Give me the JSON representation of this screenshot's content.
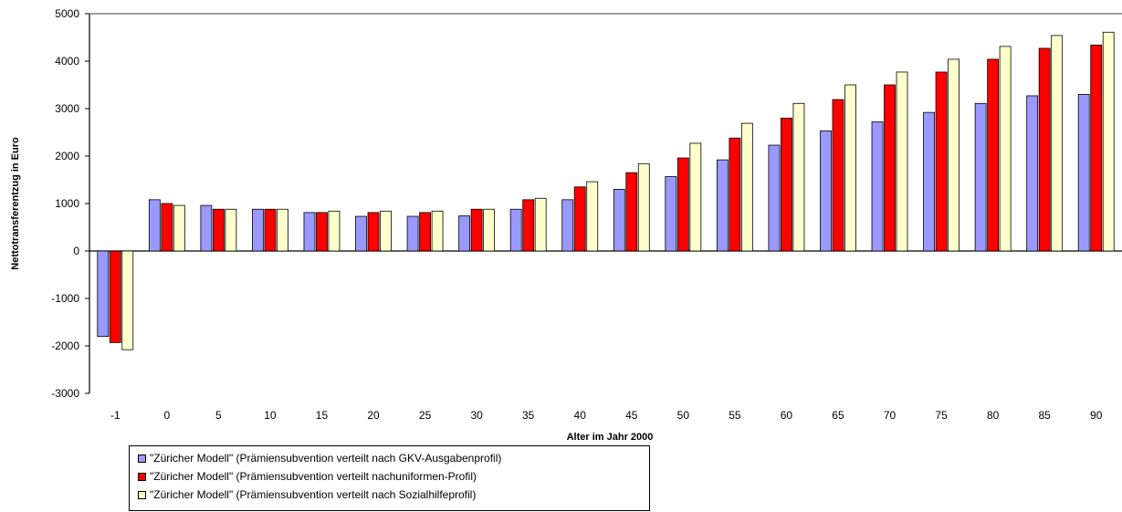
{
  "chart_data": {
    "type": "bar",
    "xlabel": "Alter im Jahr 2000",
    "ylabel": "Nettotransferentzug in Euro",
    "categories": [
      "-1",
      "0",
      "5",
      "10",
      "15",
      "20",
      "25",
      "30",
      "35",
      "40",
      "45",
      "50",
      "55",
      "60",
      "65",
      "70",
      "75",
      "80",
      "85",
      "90"
    ],
    "ylim": [
      -3000,
      5000
    ],
    "yticks": [
      "5000",
      "4000",
      "3000",
      "2000",
      "1000",
      "0",
      "-1000",
      "-2000",
      "-3000"
    ],
    "grid": false,
    "legend_position": "bottom-left",
    "series": [
      {
        "name": "\"Züricher Modell\" (Prämiensubvention verteilt nach GKV-Ausgabenprofil)",
        "color": "#9999ff",
        "values": [
          -1800,
          1080,
          960,
          880,
          810,
          730,
          730,
          740,
          880,
          1080,
          1300,
          1570,
          1920,
          2230,
          2530,
          2720,
          2920,
          3110,
          3270,
          3300
        ]
      },
      {
        "name": "\"Züricher Modell\" (Prämiensubvention verteilt nachuniformen-Profil)",
        "color": "#ff0000",
        "values": [
          -1930,
          1000,
          880,
          880,
          810,
          810,
          810,
          880,
          1080,
          1350,
          1650,
          1960,
          2380,
          2800,
          3190,
          3500,
          3770,
          4040,
          4270,
          4340
        ]
      },
      {
        "name": "\"Züricher Modell\" (Prämiensubvention verteilt nach Sozialhilfeprofil)",
        "color": "#ffffcc",
        "values": [
          -2080,
          960,
          880,
          880,
          840,
          840,
          840,
          880,
          1110,
          1460,
          1840,
          2270,
          2690,
          3110,
          3500,
          3770,
          4040,
          4310,
          4540,
          4610
        ]
      }
    ]
  }
}
